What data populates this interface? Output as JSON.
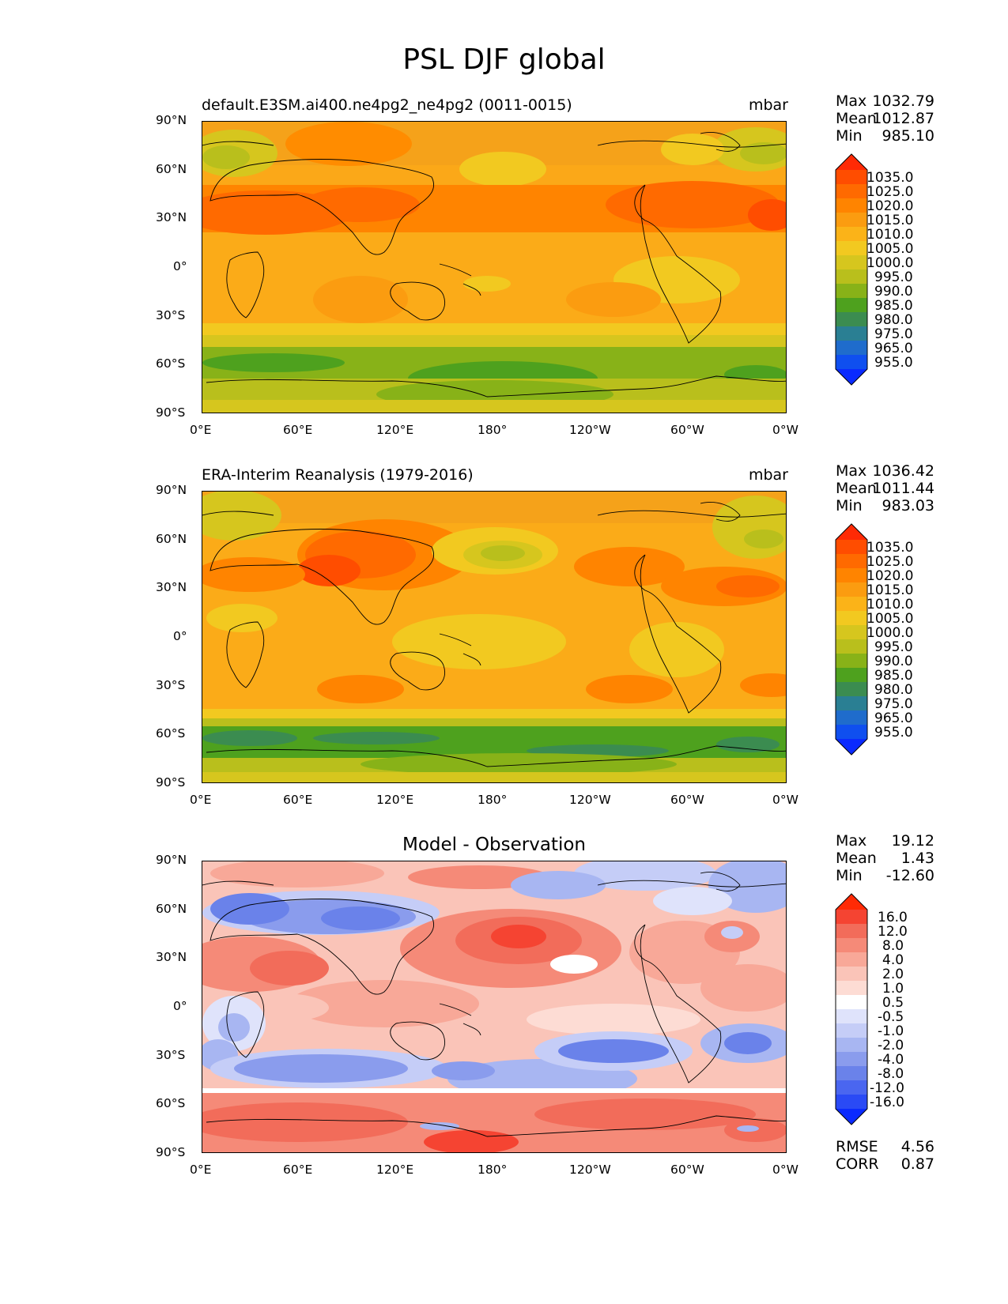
{
  "figure": {
    "title": "PSL DJF global"
  },
  "lat_ticks": [
    "90°N",
    "60°N",
    "30°N",
    "0°",
    "30°S",
    "60°S",
    "90°S"
  ],
  "lon_ticks": [
    "0°E",
    "60°E",
    "120°E",
    "180°",
    "120°W",
    "60°W",
    "0°W"
  ],
  "stat_labels": {
    "max": "Max",
    "mean": "Mean",
    "min": "Min",
    "rmse": "RMSE",
    "corr": "CORR"
  },
  "panels": [
    {
      "title": "default.E3SM.ai400.ne4pg2_ne4pg2 (0011-0015)",
      "units": "mbar",
      "stats": {
        "max": "1032.79",
        "mean": "1012.87",
        "min": "985.10"
      },
      "colorbar": {
        "labels": [
          "1035.0",
          "1025.0",
          "1020.0",
          "1015.0",
          "1010.0",
          "1005.0",
          "1000.0",
          "995.0",
          "990.0",
          "985.0",
          "980.0",
          "975.0",
          "965.0",
          "955.0"
        ],
        "colors": [
          "#ff2a05",
          "#ff4d00",
          "#ff6a00",
          "#ff8400",
          "#fb9c10",
          "#fbb318",
          "#f2c920",
          "#d6c61e",
          "#b9bf1c",
          "#88b218",
          "#4ea11e",
          "#3b8c50",
          "#2a7f93",
          "#1f6ccc",
          "#0f4fef",
          "#0a2aff"
        ]
      }
    },
    {
      "title": "ERA-Interim Reanalysis (1979-2016)",
      "units": "mbar",
      "stats": {
        "max": "1036.42",
        "mean": "1011.44",
        "min": "983.03"
      },
      "colorbar": {
        "labels": [
          "1035.0",
          "1025.0",
          "1020.0",
          "1015.0",
          "1010.0",
          "1005.0",
          "1000.0",
          "995.0",
          "990.0",
          "985.0",
          "980.0",
          "975.0",
          "965.0",
          "955.0"
        ],
        "colors": [
          "#ff2a05",
          "#ff4d00",
          "#ff6a00",
          "#ff8400",
          "#fb9c10",
          "#fbb318",
          "#f2c920",
          "#d6c61e",
          "#b9bf1c",
          "#88b218",
          "#4ea11e",
          "#3b8c50",
          "#2a7f93",
          "#1f6ccc",
          "#0f4fef",
          "#0a2aff"
        ]
      }
    },
    {
      "title": "Model - Observation",
      "units": "",
      "stats": {
        "max": "19.12",
        "mean": "1.43",
        "min": "-12.60",
        "rmse": "4.56",
        "corr": "0.87"
      },
      "colorbar": {
        "labels": [
          "16.0",
          "12.0",
          "8.0",
          "4.0",
          "2.0",
          "1.0",
          "0.5",
          "-0.5",
          "-1.0",
          "-2.0",
          "-4.0",
          "-8.0",
          "-12.0",
          "-16.0"
        ],
        "colors": [
          "#ff2a05",
          "#f54432",
          "#f26c5a",
          "#f58a78",
          "#f8a898",
          "#fac4b8",
          "#fddcd4",
          "#ffffff",
          "#dfe3fb",
          "#c5cdf7",
          "#a8b6f2",
          "#8a9ced",
          "#6a82ea",
          "#4a66f0",
          "#2a4af5",
          "#0a2aff"
        ]
      }
    }
  ]
}
